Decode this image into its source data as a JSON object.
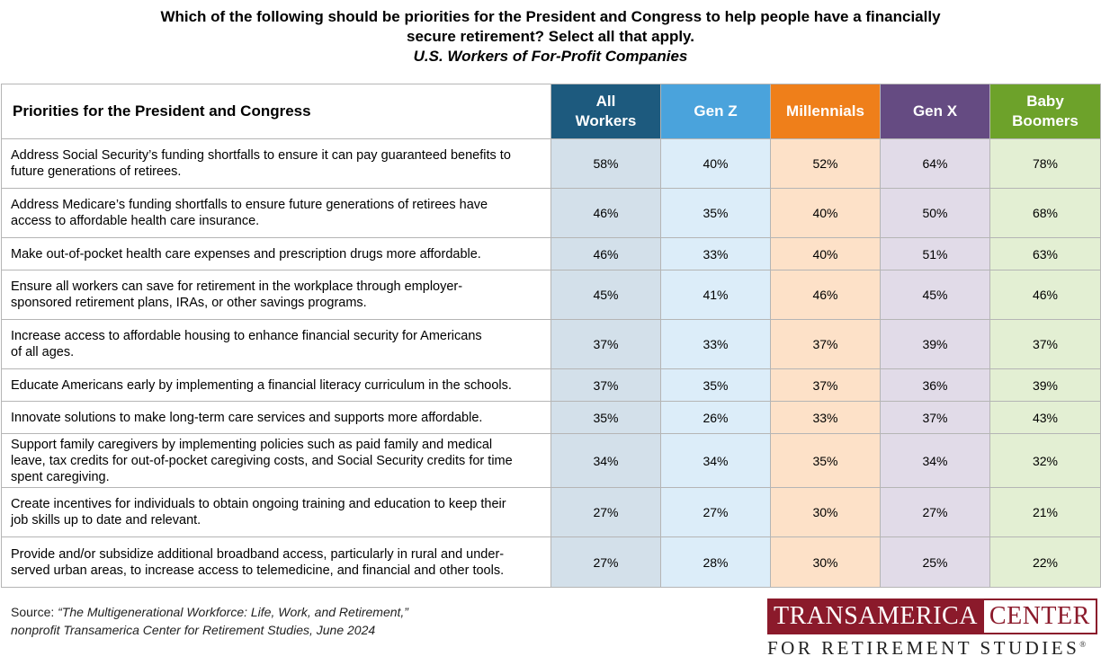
{
  "title_line1": "Which of the following should be priorities for the President and Congress to help people have a financially",
  "title_line2": "secure retirement? Select all that apply.",
  "subtitle": "U.S. Workers of For-Profit Companies",
  "colors": {
    "all_workers": "#1d5a7e",
    "gen_z": "#4aa3dc",
    "millennials": "#ef7f1a",
    "gen_x": "#654b82",
    "baby_boomers": "#6da22a",
    "logo": "#8b1a2b"
  },
  "chart_data": {
    "type": "table",
    "title": "Which of the following should be priorities for the President and Congress to help people have a financially secure retirement? Select all that apply.",
    "subtitle": "U.S. Workers of For-Profit Companies",
    "row_header": "Priorities for the President and Congress",
    "columns": [
      {
        "line1": "All",
        "line2": "Workers"
      },
      {
        "line1": "Gen Z",
        "line2": ""
      },
      {
        "line1": "Millennials",
        "line2": ""
      },
      {
        "line1": "Gen X",
        "line2": ""
      },
      {
        "line1": "Baby",
        "line2": "Boomers"
      }
    ],
    "rows": [
      {
        "label_lines": [
          "Address Social Security’s funding shortfalls to ensure it can pay guaranteed benefits to",
          "future generations of retirees."
        ],
        "values": [
          "58%",
          "40%",
          "52%",
          "64%",
          "78%"
        ]
      },
      {
        "label_lines": [
          "Address Medicare’s funding shortfalls to ensure future generations of retirees have",
          "access to affordable health care insurance."
        ],
        "values": [
          "46%",
          "35%",
          "40%",
          "50%",
          "68%"
        ]
      },
      {
        "label_lines": [
          "Make out-of-pocket health care expenses and prescription drugs more affordable."
        ],
        "values": [
          "46%",
          "33%",
          "40%",
          "51%",
          "63%"
        ]
      },
      {
        "label_lines": [
          "Ensure all workers can save for retirement in the workplace through employer-",
          "sponsored retirement plans, IRAs, or other savings programs."
        ],
        "values": [
          "45%",
          "41%",
          "46%",
          "45%",
          "46%"
        ]
      },
      {
        "label_lines": [
          "Increase access to affordable housing to enhance financial security for Americans",
          "of all ages."
        ],
        "values": [
          "37%",
          "33%",
          "37%",
          "39%",
          "37%"
        ]
      },
      {
        "label_lines": [
          "Educate Americans early by implementing a financial literacy curriculum in the schools."
        ],
        "values": [
          "37%",
          "35%",
          "37%",
          "36%",
          "39%"
        ]
      },
      {
        "label_lines": [
          "Innovate solutions to make long-term care services and supports more affordable."
        ],
        "values": [
          "35%",
          "26%",
          "33%",
          "37%",
          "43%"
        ]
      },
      {
        "label_lines": [
          "Support family caregivers by implementing policies such as paid family and medical",
          "leave, tax credits for out-of-pocket caregiving costs, and Social Security credits for time",
          "spent caregiving."
        ],
        "values": [
          "34%",
          "34%",
          "35%",
          "34%",
          "32%"
        ]
      },
      {
        "label_lines": [
          "Create incentives for individuals to obtain ongoing training and education to keep their",
          "job skills up to date and relevant."
        ],
        "values": [
          "27%",
          "27%",
          "30%",
          "27%",
          "21%"
        ]
      },
      {
        "label_lines": [
          "Provide and/or subsidize additional broadband access, particularly in rural and under-",
          "served urban areas, to increase access to telemedicine, and financial and other tools."
        ],
        "values": [
          "27%",
          "28%",
          "30%",
          "25%",
          "22%"
        ]
      }
    ]
  },
  "source": {
    "prefix": "Source: ",
    "title": "“The Multigenerational Workforce: Life, Work, and Retirement,”",
    "line2": "nonprofit Transamerica Center for Retirement Studies, June 2024"
  },
  "logo": {
    "box_text": "TRANSAMERICA",
    "right_text": "CENTER",
    "bottom_text": "FOR RETIREMENT STUDIES",
    "mark": "®"
  }
}
